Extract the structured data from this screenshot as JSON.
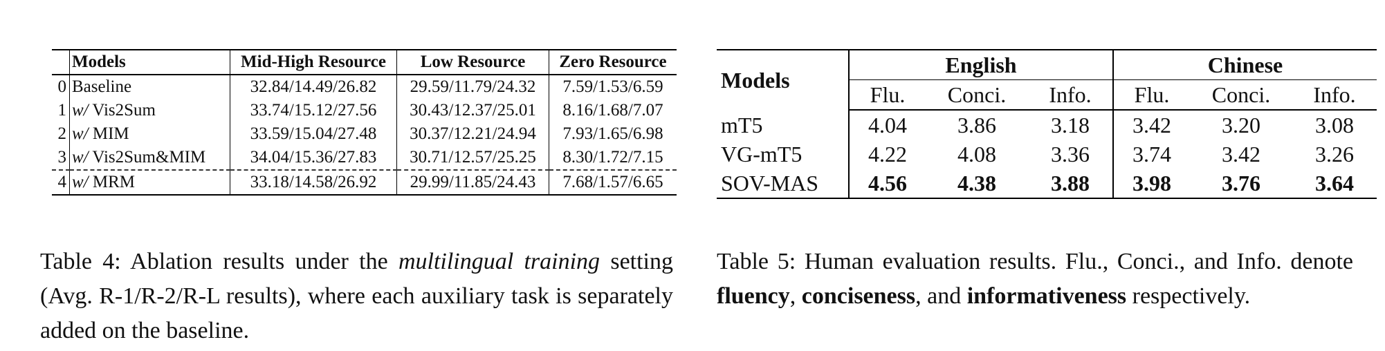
{
  "table4": {
    "headers": {
      "index": "",
      "models": "Models",
      "col1": "Mid-High Resource",
      "col2": "Low Resource",
      "col3": "Zero Resource"
    },
    "rows": [
      {
        "idx": "0",
        "prefix": "",
        "name": "Baseline",
        "c1": "32.84/14.49/26.82",
        "c2": "29.59/11.79/24.32",
        "c3": "7.59/1.53/6.59"
      },
      {
        "idx": "1",
        "prefix": "w/",
        "name": " Vis2Sum",
        "c1": "33.74/15.12/27.56",
        "c2": "30.43/12.37/25.01",
        "c3": "8.16/1.68/7.07"
      },
      {
        "idx": "2",
        "prefix": "w/",
        "name": " MIM",
        "c1": "33.59/15.04/27.48",
        "c2": "30.37/12.21/24.94",
        "c3": "7.93/1.65/6.98"
      },
      {
        "idx": "3",
        "prefix": "w/",
        "name": " Vis2Sum&MIM",
        "c1": "34.04/15.36/27.83",
        "c2": "30.71/12.57/25.25",
        "c3": "8.30/1.72/7.15"
      },
      {
        "idx": "4",
        "prefix": "w/",
        "name": " MRM",
        "c1": "33.18/14.58/26.92",
        "c2": "29.99/11.85/24.43",
        "c3": "7.68/1.57/6.65"
      }
    ]
  },
  "table5": {
    "models_header": "Models",
    "groups": [
      "English",
      "Chinese"
    ],
    "subheaders": [
      "Flu.",
      "Conci.",
      "Info.",
      "Flu.",
      "Conci.",
      "Info."
    ],
    "rows": [
      {
        "name": "mT5",
        "values": [
          "4.04",
          "3.86",
          "3.18",
          "3.42",
          "3.20",
          "3.08"
        ]
      },
      {
        "name": "VG-mT5",
        "values": [
          "4.22",
          "4.08",
          "3.36",
          "3.74",
          "3.42",
          "3.26"
        ]
      },
      {
        "name": "SOV-MAS",
        "values": [
          "4.56",
          "4.38",
          "3.88",
          "3.98",
          "3.76",
          "3.64"
        ]
      }
    ]
  },
  "caption4": {
    "lead": "Table 4:  Ablation results under the ",
    "italic": "multilingual training",
    "rest": " setting (Avg. R-1/R-2/R-L results), where each auxiliary task is separately added on the baseline."
  },
  "caption5": {
    "lead": "Table 5:  Human evaluation results.  Flu., Conci., and Info.  denote ",
    "b1": "fluency",
    "sep1": ", ",
    "b2": "conciseness",
    "sep2": ", and ",
    "b3": "informativeness",
    "rest": " respectively."
  }
}
